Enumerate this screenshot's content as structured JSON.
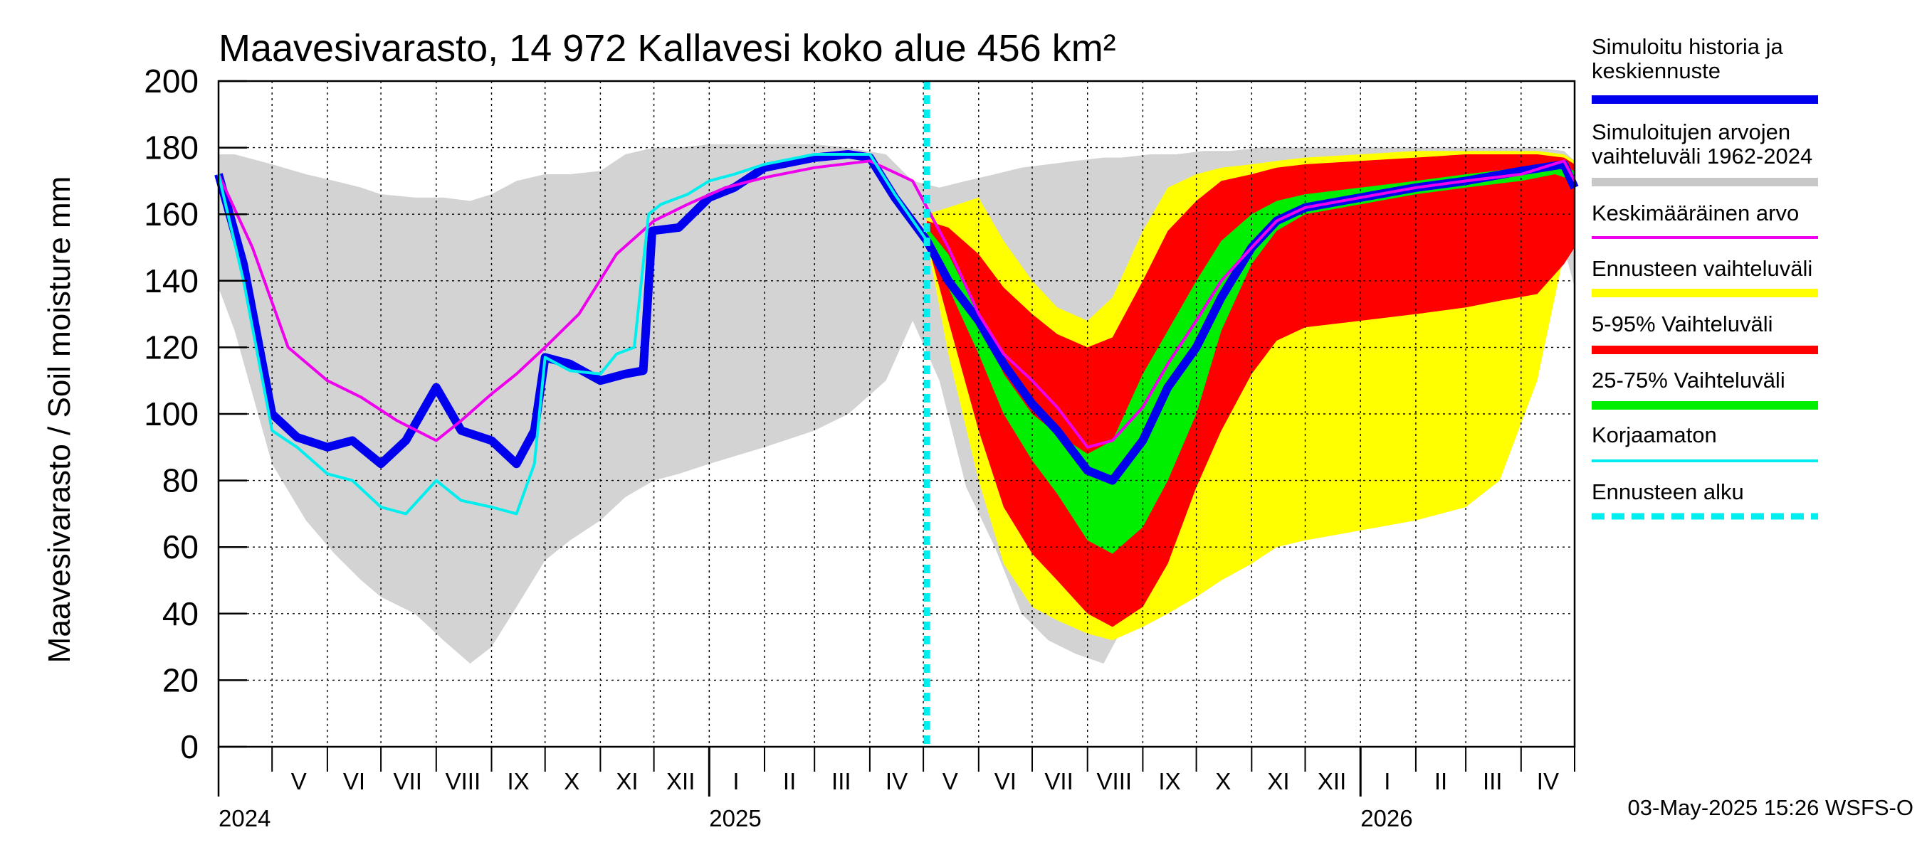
{
  "chart_data": {
    "type": "area",
    "title": "Maavesivarasto, 14 972 Kallavesi koko alue 456 km²",
    "ylabel": "Maavesivarasto / Soil moisture   mm",
    "xlabel": "",
    "ylim": [
      0,
      200
    ],
    "yticks": [
      "0",
      "20",
      "40",
      "60",
      "80",
      "100",
      "120",
      "140",
      "160",
      "180",
      "200"
    ],
    "xlim": [
      "2024-04-01",
      "2026-05-01"
    ],
    "grid": true,
    "legend_position": "right",
    "timestamp": "03-May-2025 15:26 WSFS-O",
    "forecast_start": "2025-05-03",
    "month_labels": [
      {
        "label": "V",
        "date": "2024-05-16"
      },
      {
        "label": "VI",
        "date": "2024-06-16"
      },
      {
        "label": "VII",
        "date": "2024-07-16"
      },
      {
        "label": "VIII",
        "date": "2024-08-16"
      },
      {
        "label": "IX",
        "date": "2024-09-16"
      },
      {
        "label": "X",
        "date": "2024-10-16"
      },
      {
        "label": "XI",
        "date": "2024-11-16"
      },
      {
        "label": "XII",
        "date": "2024-12-16"
      },
      {
        "label": "I",
        "date": "2025-01-16"
      },
      {
        "label": "II",
        "date": "2025-02-15"
      },
      {
        "label": "III",
        "date": "2025-03-16"
      },
      {
        "label": "IV",
        "date": "2025-04-16"
      },
      {
        "label": "V",
        "date": "2025-05-16"
      },
      {
        "label": "VI",
        "date": "2025-06-16"
      },
      {
        "label": "VII",
        "date": "2025-07-16"
      },
      {
        "label": "VIII",
        "date": "2025-08-16"
      },
      {
        "label": "IX",
        "date": "2025-09-16"
      },
      {
        "label": "X",
        "date": "2025-10-16"
      },
      {
        "label": "XI",
        "date": "2025-11-16"
      },
      {
        "label": "XII",
        "date": "2025-12-16"
      },
      {
        "label": "I",
        "date": "2026-01-16"
      },
      {
        "label": "II",
        "date": "2026-02-15"
      },
      {
        "label": "III",
        "date": "2026-03-16"
      },
      {
        "label": "IV",
        "date": "2026-04-16"
      }
    ],
    "year_labels": [
      {
        "label": "2024",
        "date": "2024-04-01"
      },
      {
        "label": "2025",
        "date": "2025-01-01"
      },
      {
        "label": "2026",
        "date": "2026-01-01"
      }
    ],
    "legend": [
      {
        "label": "Simuloitu historia ja\nkeskiennuste",
        "color": "#0000ee",
        "style": "thick"
      },
      {
        "label": "Simuloitujen arvojen\nvaihteluväli 1962-2024",
        "color": "#c8c8c8",
        "style": "thick"
      },
      {
        "label": "Keskimääräinen arvo",
        "color": "#ee00ee",
        "style": "thin"
      },
      {
        "label": "Ennusteen vaihteluväli",
        "color": "#ffff00",
        "style": "thick"
      },
      {
        "label": "5-95% Vaihteluväli",
        "color": "#ff0000",
        "style": "thick"
      },
      {
        "label": "25-75% Vaihteluväli",
        "color": "#00ee00",
        "style": "thick"
      },
      {
        "label": "Korjaamaton",
        "color": "#00eeee",
        "style": "thin"
      },
      {
        "label": "Ennusteen alku",
        "color": "#00eeee",
        "style": "dashed"
      }
    ],
    "series": [
      {
        "name": "Simuloitujen arvojen vaihteluväli 1962-2024",
        "kind": "band",
        "color": "#d3d3d3",
        "x": [
          "2024-04-01",
          "2024-04-10",
          "2024-05-01",
          "2024-05-20",
          "2024-06-05",
          "2024-06-20",
          "2024-07-01",
          "2024-07-20",
          "2024-08-05",
          "2024-08-20",
          "2024-09-01",
          "2024-09-15",
          "2024-10-01",
          "2024-10-15",
          "2024-11-01",
          "2024-11-15",
          "2024-12-01",
          "2024-12-15",
          "2025-01-01",
          "2025-02-01",
          "2025-03-01",
          "2025-03-20",
          "2025-04-10",
          "2025-04-25",
          "2025-05-10",
          "2025-05-25",
          "2025-06-10",
          "2025-06-25",
          "2025-07-10",
          "2025-07-25",
          "2025-08-10",
          "2025-08-20",
          "2025-09-05",
          "2025-09-20",
          "2025-10-05",
          "2025-10-20",
          "2025-11-05",
          "2025-11-20",
          "2025-12-05",
          "2026-01-01",
          "2026-02-01",
          "2026-03-01",
          "2026-03-20",
          "2026-04-10",
          "2026-04-25",
          "2026-05-01"
        ],
        "low": [
          138,
          125,
          85,
          68,
          58,
          50,
          45,
          40,
          32,
          25,
          30,
          42,
          56,
          62,
          68,
          75,
          80,
          82,
          85,
          90,
          95,
          100,
          110,
          128,
          110,
          78,
          60,
          40,
          32,
          28,
          25,
          35,
          45,
          52,
          60,
          66,
          72,
          76,
          78,
          82,
          86,
          90,
          100,
          120,
          150,
          138
        ],
        "high": [
          178,
          178,
          175,
          172,
          170,
          168,
          166,
          165,
          165,
          164,
          166,
          170,
          172,
          172,
          173,
          178,
          180,
          180,
          181,
          181,
          181,
          180,
          178,
          170,
          168,
          170,
          172,
          174,
          175,
          176,
          177,
          177,
          178,
          178,
          179,
          179,
          180,
          180,
          180,
          180,
          180,
          180,
          180,
          180,
          179,
          176
        ]
      },
      {
        "name": "Ennusteen vaihteluväli",
        "kind": "band",
        "color": "#ffff00",
        "x": [
          "2025-05-03",
          "2025-05-15",
          "2025-06-01",
          "2025-06-15",
          "2025-07-01",
          "2025-07-15",
          "2025-08-01",
          "2025-08-15",
          "2025-09-01",
          "2025-09-15",
          "2025-10-01",
          "2025-10-15",
          "2025-11-01",
          "2025-11-15",
          "2025-12-01",
          "2026-01-01",
          "2026-02-01",
          "2026-03-01",
          "2026-03-20",
          "2026-04-10",
          "2026-04-25",
          "2026-05-01"
        ],
        "low": [
          152,
          118,
          80,
          55,
          42,
          38,
          34,
          32,
          36,
          40,
          45,
          50,
          55,
          60,
          62,
          65,
          68,
          72,
          80,
          110,
          148,
          150
        ],
        "high": [
          160,
          162,
          165,
          152,
          140,
          132,
          128,
          135,
          155,
          168,
          172,
          174,
          175,
          176,
          177,
          178,
          179,
          179,
          179,
          179,
          178,
          176
        ]
      },
      {
        "name": "5-95% Vaihteluväli",
        "kind": "band",
        "color": "#ff0000",
        "x": [
          "2025-05-03",
          "2025-05-15",
          "2025-06-01",
          "2025-06-15",
          "2025-07-01",
          "2025-07-15",
          "2025-08-01",
          "2025-08-15",
          "2025-09-01",
          "2025-09-15",
          "2025-10-01",
          "2025-10-15",
          "2025-11-01",
          "2025-11-15",
          "2025-12-01",
          "2026-01-01",
          "2026-02-01",
          "2026-03-01",
          "2026-03-20",
          "2026-04-10",
          "2026-04-25",
          "2026-05-01"
        ],
        "low": [
          152,
          128,
          95,
          72,
          58,
          50,
          40,
          36,
          42,
          55,
          78,
          95,
          112,
          122,
          126,
          128,
          130,
          132,
          134,
          136,
          145,
          150
        ],
        "high": [
          158,
          156,
          148,
          138,
          130,
          124,
          120,
          123,
          140,
          155,
          164,
          170,
          172,
          174,
          175,
          176,
          177,
          178,
          178,
          178,
          177,
          175
        ]
      },
      {
        "name": "25-75% Vaihteluväli",
        "kind": "band",
        "color": "#00ee00",
        "x": [
          "2025-05-03",
          "2025-05-15",
          "2025-06-01",
          "2025-06-15",
          "2025-07-01",
          "2025-07-15",
          "2025-08-01",
          "2025-08-15",
          "2025-09-01",
          "2025-09-15",
          "2025-10-01",
          "2025-10-15",
          "2025-11-01",
          "2025-11-15",
          "2025-12-01",
          "2026-01-01",
          "2026-02-01",
          "2026-03-01",
          "2026-04-01",
          "2026-04-20",
          "2026-05-01"
        ],
        "low": [
          153,
          138,
          118,
          100,
          86,
          76,
          62,
          58,
          66,
          80,
          100,
          125,
          145,
          155,
          160,
          163,
          166,
          168,
          170,
          172,
          170
        ],
        "high": [
          156,
          148,
          130,
          112,
          100,
          94,
          88,
          92,
          112,
          125,
          140,
          152,
          160,
          164,
          166,
          168,
          170,
          172,
          174,
          175,
          173
        ]
      },
      {
        "name": "Simuloitu historia ja keskiennuste",
        "kind": "line",
        "color": "#0000ee",
        "x": [
          "2024-04-01",
          "2024-04-15",
          "2024-05-01",
          "2024-05-15",
          "2024-06-01",
          "2024-06-15",
          "2024-07-01",
          "2024-07-15",
          "2024-08-01",
          "2024-08-15",
          "2024-09-01",
          "2024-09-15",
          "2024-09-25",
          "2024-10-01",
          "2024-10-15",
          "2024-11-01",
          "2024-11-15",
          "2024-11-25",
          "2024-11-30",
          "2024-12-15",
          "2025-01-01",
          "2025-01-15",
          "2025-02-01",
          "2025-03-01",
          "2025-03-20",
          "2025-04-01",
          "2025-04-15",
          "2025-05-03",
          "2025-05-15",
          "2025-06-01",
          "2025-06-15",
          "2025-07-01",
          "2025-07-15",
          "2025-08-01",
          "2025-08-15",
          "2025-09-01",
          "2025-09-15",
          "2025-10-01",
          "2025-10-15",
          "2025-11-01",
          "2025-11-15",
          "2025-12-01",
          "2026-01-01",
          "2026-02-01",
          "2026-03-01",
          "2026-04-01",
          "2026-04-25",
          "2026-05-01"
        ],
        "y": [
          172,
          145,
          100,
          93,
          90,
          92,
          85,
          92,
          108,
          95,
          92,
          85,
          95,
          117,
          115,
          110,
          112,
          113,
          155,
          156,
          165,
          168,
          174,
          177,
          178,
          177,
          165,
          152,
          140,
          128,
          115,
          103,
          95,
          83,
          80,
          92,
          108,
          120,
          135,
          150,
          158,
          162,
          165,
          168,
          170,
          173,
          175,
          168
        ]
      },
      {
        "name": "Keskimääräinen arvo",
        "kind": "line",
        "color": "#ee00ee",
        "x": [
          "2024-04-01",
          "2024-04-20",
          "2024-05-10",
          "2024-06-01",
          "2024-06-20",
          "2024-07-10",
          "2024-08-01",
          "2024-08-15",
          "2024-09-01",
          "2024-09-15",
          "2024-10-01",
          "2024-10-20",
          "2024-11-10",
          "2024-12-01",
          "2024-12-20",
          "2025-01-10",
          "2025-02-01",
          "2025-03-01",
          "2025-04-01",
          "2025-04-25",
          "2025-05-15",
          "2025-06-01",
          "2025-06-15",
          "2025-07-01",
          "2025-07-15",
          "2025-08-01",
          "2025-08-15",
          "2025-09-01",
          "2025-09-15",
          "2025-10-01",
          "2025-10-15",
          "2025-11-01",
          "2025-11-15",
          "2025-12-01",
          "2026-01-01",
          "2026-02-01",
          "2026-03-01",
          "2026-04-01",
          "2026-04-25",
          "2026-05-01"
        ],
        "y": [
          172,
          150,
          120,
          110,
          105,
          98,
          92,
          98,
          106,
          112,
          120,
          130,
          148,
          158,
          163,
          168,
          171,
          174,
          176,
          170,
          150,
          130,
          118,
          110,
          102,
          90,
          92,
          102,
          115,
          128,
          140,
          150,
          158,
          162,
          165,
          168,
          170,
          172,
          176,
          170
        ]
      },
      {
        "name": "Korjaamaton",
        "kind": "line",
        "color": "#00eeee",
        "x": [
          "2024-04-01",
          "2024-04-15",
          "2024-05-01",
          "2024-05-15",
          "2024-06-01",
          "2024-06-15",
          "2024-07-01",
          "2024-07-15",
          "2024-08-01",
          "2024-08-15",
          "2024-09-01",
          "2024-09-15",
          "2024-09-25",
          "2024-10-01",
          "2024-10-15",
          "2024-11-01",
          "2024-11-10",
          "2024-11-20",
          "2024-11-28",
          "2024-12-05",
          "2024-12-20",
          "2025-01-01",
          "2025-01-15",
          "2025-02-01",
          "2025-03-01",
          "2025-04-01",
          "2025-04-15",
          "2025-05-03"
        ],
        "y": [
          172,
          140,
          95,
          90,
          82,
          80,
          72,
          70,
          80,
          74,
          72,
          70,
          85,
          117,
          113,
          112,
          118,
          120,
          160,
          163,
          166,
          170,
          172,
          175,
          178,
          178,
          166,
          152
        ]
      },
      {
        "name": "Ennusteen alku",
        "kind": "vline",
        "color": "#00eeee",
        "x": "2025-05-03"
      }
    ]
  }
}
